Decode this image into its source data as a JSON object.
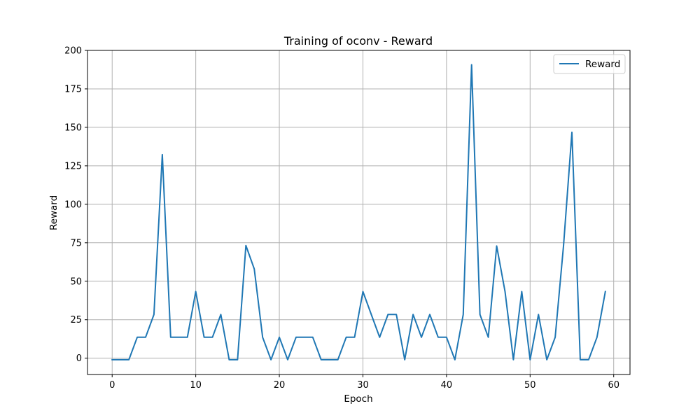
{
  "chart_data": {
    "type": "line",
    "title": "Training of oconv - Reward",
    "xlabel": "Epoch",
    "ylabel": "Reward",
    "xlim": [
      -2.95,
      61.95
    ],
    "ylim": [
      -10.6,
      200
    ],
    "xticks": [
      0,
      10,
      20,
      30,
      40,
      50,
      60
    ],
    "yticks": [
      0,
      25,
      50,
      75,
      100,
      125,
      150,
      175,
      200
    ],
    "grid": true,
    "legend_position": "top-right",
    "series": [
      {
        "name": "Reward",
        "color": "#1f77b4",
        "x": [
          0,
          1,
          2,
          3,
          4,
          5,
          6,
          7,
          8,
          9,
          10,
          11,
          12,
          13,
          14,
          15,
          16,
          17,
          18,
          19,
          20,
          21,
          22,
          23,
          24,
          25,
          26,
          27,
          28,
          29,
          30,
          31,
          32,
          33,
          34,
          35,
          36,
          37,
          38,
          39,
          40,
          41,
          42,
          43,
          44,
          45,
          46,
          47,
          48,
          49,
          50,
          51,
          52,
          53,
          54,
          55,
          56,
          57,
          58,
          59
        ],
        "values": [
          -1,
          -1,
          -1,
          13.6,
          13.6,
          28.4,
          132.3,
          13.6,
          13.6,
          13.6,
          43.3,
          13.6,
          13.6,
          28.4,
          -1,
          -1,
          73.2,
          58,
          13.6,
          -1,
          13.6,
          -1,
          13.6,
          13.6,
          13.6,
          -1,
          -1,
          -1,
          13.6,
          13.6,
          43.3,
          28.4,
          13.6,
          28.4,
          28.4,
          -1,
          28.4,
          13.6,
          28.4,
          13.6,
          13.6,
          -1,
          28.4,
          190.7,
          28.4,
          13.6,
          72.9,
          43.3,
          -1,
          43.3,
          -1,
          28.4,
          -1,
          13.6,
          73.2,
          146.8,
          -1,
          -1,
          13.6,
          43.3
        ]
      }
    ]
  }
}
